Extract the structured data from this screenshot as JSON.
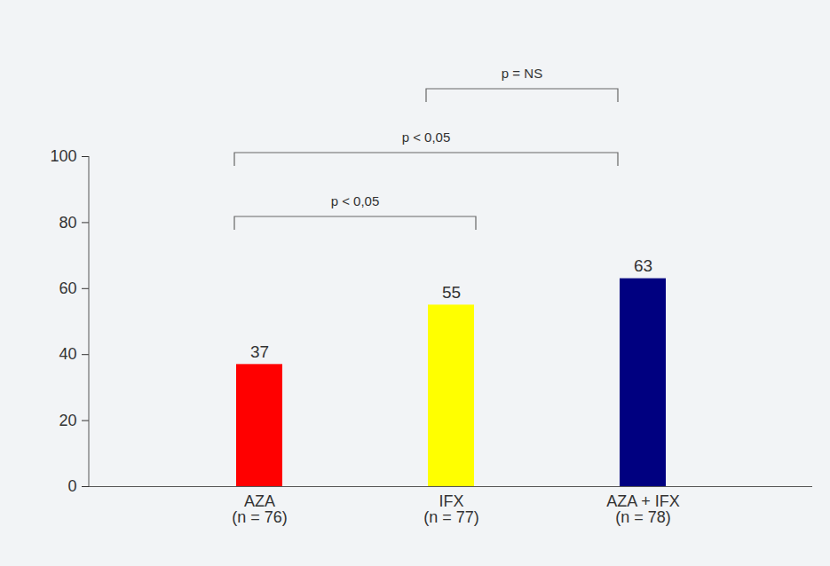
{
  "chart_data": {
    "type": "bar",
    "categories": [
      "AZA\n(n = 76)",
      "IFX\n(n = 77)",
      "AZA + IFX\n(n = 78)"
    ],
    "values": [
      37,
      55,
      63
    ],
    "colors": [
      "#ff0000",
      "#ffff00",
      "#000080"
    ],
    "ylim": [
      0,
      100
    ],
    "yticks": [
      0,
      20,
      40,
      60,
      80,
      100
    ],
    "data_labels": true,
    "annotations": [
      {
        "from": "AZA\n(n = 76)",
        "to": "IFX\n(n = 77)",
        "text": "p < 0,05"
      },
      {
        "from": "AZA\n(n = 76)",
        "to": "AZA + IFX\n(n = 78)",
        "text": "p < 0,05"
      },
      {
        "from": "IFX\n(n = 77)",
        "to": "AZA + IFX\n(n = 78)",
        "text": "p = NS"
      }
    ]
  }
}
